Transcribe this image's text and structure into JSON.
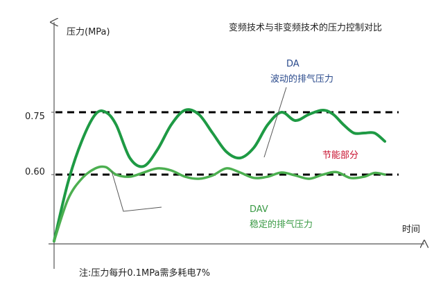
{
  "chart_data": {
    "type": "line",
    "title": "变频技术与非变频技术的压力控制对比",
    "ylabel": "压力(MPa)",
    "xlabel": "时间",
    "yticks": [
      {
        "value": 0.75,
        "label": "0.75"
      },
      {
        "value": 0.6,
        "label": "0.60"
      }
    ],
    "ylim": [
      0.42,
      0.95
    ],
    "xlim": [
      0,
      10
    ],
    "series": [
      {
        "name": "DA",
        "color": "#1e9a44",
        "x": [
          0,
          0.4,
          0.8,
          1.2,
          1.5,
          1.8,
          2.2,
          2.6,
          3.0,
          3.4,
          3.8,
          4.2,
          4.6,
          5.0,
          5.4,
          5.8,
          6.2,
          6.6,
          7.0,
          7.4,
          7.8,
          8.1,
          8.4,
          8.7,
          9.0,
          9.3,
          9.6
        ],
        "values": [
          0.44,
          0.58,
          0.68,
          0.745,
          0.75,
          0.72,
          0.64,
          0.62,
          0.66,
          0.72,
          0.755,
          0.745,
          0.7,
          0.655,
          0.64,
          0.665,
          0.72,
          0.75,
          0.73,
          0.745,
          0.755,
          0.745,
          0.72,
          0.7,
          0.7,
          0.7,
          0.68
        ]
      },
      {
        "name": "DAV",
        "color": "#4caf50",
        "x": [
          0,
          0.4,
          0.8,
          1.2,
          1.5,
          1.8,
          2.2,
          2.6,
          3.0,
          3.4,
          3.8,
          4.2,
          4.6,
          5.0,
          5.4,
          5.8,
          6.2,
          6.6,
          7.0,
          7.4,
          7.8,
          8.2,
          8.6,
          9.0,
          9.3,
          9.6
        ],
        "values": [
          0.44,
          0.54,
          0.59,
          0.615,
          0.618,
          0.6,
          0.595,
          0.605,
          0.615,
          0.61,
          0.595,
          0.59,
          0.598,
          0.615,
          0.605,
          0.592,
          0.595,
          0.605,
          0.598,
          0.59,
          0.6,
          0.606,
          0.592,
          0.595,
          0.604,
          0.6
        ]
      }
    ],
    "reference_lines": [
      {
        "value": 0.75,
        "style": "dashed",
        "color": "#000000"
      },
      {
        "value": 0.6,
        "style": "dashed",
        "color": "#000000"
      }
    ],
    "annotations": {
      "da": {
        "line1": "DA",
        "line2": "波动的排气压力",
        "color": "#2a4a8c"
      },
      "dav": {
        "line1": "DAV",
        "line2": "稳定的排气压力",
        "color": "#3a9a45"
      },
      "saving": {
        "text": "节能部分",
        "color": "#c8102e"
      },
      "note": "注:压力每升0.1MPa需多耗电7%"
    },
    "grid": false,
    "legend": "none"
  }
}
